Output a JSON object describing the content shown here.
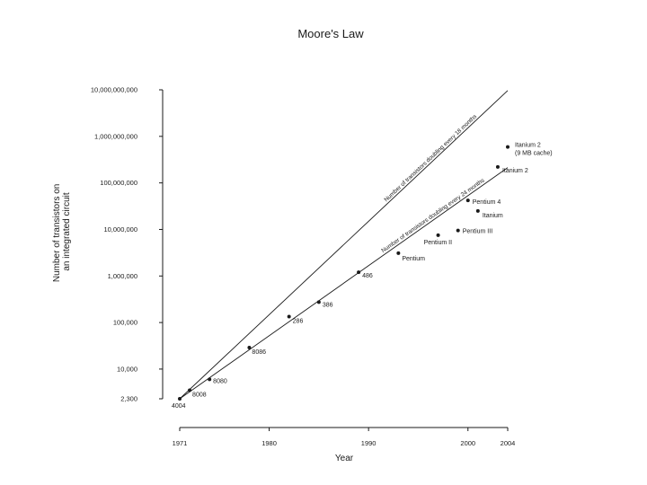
{
  "chart_data": {
    "type": "scatter",
    "title": "Moore's Law",
    "xlabel": "Year",
    "ylabel": [
      "Number of transistors on",
      "an integrated circuit"
    ],
    "y_scale": "log",
    "xlim": [
      1971,
      2004
    ],
    "ylim": [
      2300,
      10000000000
    ],
    "x_ticks": [
      1971,
      1980,
      1990,
      2000,
      2004
    ],
    "y_ticks": [
      {
        "value": 2300,
        "label": "2,300"
      },
      {
        "value": 10000,
        "label": "10,000"
      },
      {
        "value": 100000,
        "label": "100,000"
      },
      {
        "value": 1000000,
        "label": "1,000,000"
      },
      {
        "value": 10000000,
        "label": "10,000,000"
      },
      {
        "value": 100000000,
        "label": "100,000,000"
      },
      {
        "value": 1000000000,
        "label": "1,000,000,000"
      },
      {
        "value": 10000000000,
        "label": "10,000,000,000"
      }
    ],
    "grid": false,
    "points": [
      {
        "label": "4004",
        "x": 1971,
        "y": 2300
      },
      {
        "label": "8008",
        "x": 1972,
        "y": 3500
      },
      {
        "label": "8080",
        "x": 1974,
        "y": 6000
      },
      {
        "label": "8086",
        "x": 1978,
        "y": 29000
      },
      {
        "label": "286",
        "x": 1982,
        "y": 134000
      },
      {
        "label": "386",
        "x": 1985,
        "y": 275000
      },
      {
        "label": "486",
        "x": 1989,
        "y": 1200000
      },
      {
        "label": "Pentium",
        "x": 1993,
        "y": 3100000
      },
      {
        "label": "Pentium II",
        "x": 1997,
        "y": 7500000
      },
      {
        "label": "Pentium III",
        "x": 1999,
        "y": 9500000
      },
      {
        "label": "Pentium 4",
        "x": 2000,
        "y": 42000000
      },
      {
        "label": "Itanium",
        "x": 2001,
        "y": 25000000
      },
      {
        "label": "Itanium 2",
        "x": 2003,
        "y": 220000000
      },
      {
        "label": "Itanium 2 (9 MB cache)",
        "lines": [
          "Itanium 2",
          "(9 MB cache)"
        ],
        "x": 2004,
        "y": 592000000
      }
    ],
    "trend_lines": [
      {
        "label": "Number of transistors doubling every 18 months",
        "doubling_months": 18,
        "start": {
          "x": 1971,
          "y": 2300
        }
      },
      {
        "label": "Number of transistors doubling every 24 months",
        "doubling_months": 24,
        "start": {
          "x": 1971,
          "y": 2300
        }
      }
    ]
  }
}
